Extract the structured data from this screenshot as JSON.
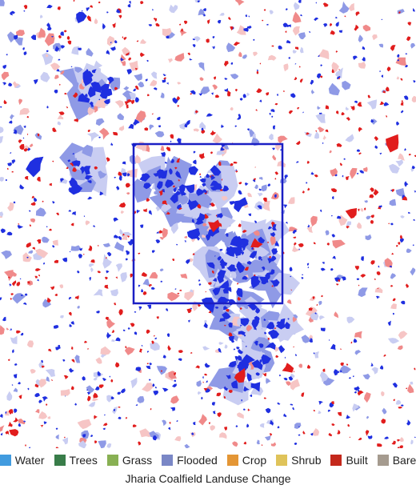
{
  "colors": {
    "gain": "#1f2fe0",
    "gain_light": "#8f9ae6",
    "gain_pale": "#c9cdf2",
    "loss": "#e11d1d",
    "loss_light": "#f08a8a",
    "loss_pale": "#f6c5c5",
    "box": "#1a1fc4"
  },
  "legend": [
    {
      "label": "Water",
      "color": "#419bdf"
    },
    {
      "label": "Trees",
      "color": "#397d49"
    },
    {
      "label": "Grass",
      "color": "#88b053"
    },
    {
      "label": "Flooded",
      "color": "#7a87c6"
    },
    {
      "label": "Crop",
      "color": "#e49635"
    },
    {
      "label": "Shrub",
      "color": "#dfc35a"
    },
    {
      "label": "Built",
      "color": "#c4281b"
    },
    {
      "label": "Bare",
      "color": "#a59b8f"
    }
  ],
  "caption": "Jharia Coalfield Landuse Change"
}
